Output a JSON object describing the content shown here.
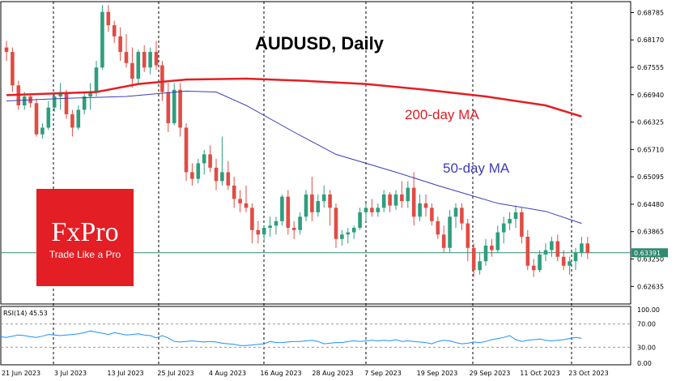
{
  "chart_data": {
    "type": "candlestick",
    "title": "AUDUSD, Daily",
    "symbol": "AUDUSD",
    "timeframe": "Daily",
    "x_tick_labels": [
      "21 Jun 2023",
      "3 Jul 2023",
      "13 Jul 2023",
      "25 Jul 2023",
      "4 Aug 2023",
      "16 Aug 2023",
      "28 Aug 2023",
      "7 Sep 2023",
      "19 Sep 2023",
      "29 Sep 2023",
      "11 Oct 2023",
      "23 Oct 2023"
    ],
    "y_tick_labels": [
      "0.68785",
      "0.68170",
      "0.67555",
      "0.66940",
      "0.66325",
      "0.65710",
      "0.65095",
      "0.64480",
      "0.63865",
      "0.63250",
      "0.62635"
    ],
    "ylim": [
      0.6224,
      0.6903
    ],
    "current_price": 0.63391,
    "current_price_label": "0.63391",
    "candles": [
      {
        "o": 0.68,
        "h": 0.6815,
        "l": 0.677,
        "c": 0.679
      },
      {
        "o": 0.679,
        "h": 0.68,
        "l": 0.67,
        "c": 0.6715
      },
      {
        "o": 0.6715,
        "h": 0.6725,
        "l": 0.666,
        "c": 0.667
      },
      {
        "o": 0.667,
        "h": 0.67,
        "l": 0.666,
        "c": 0.669
      },
      {
        "o": 0.669,
        "h": 0.6695,
        "l": 0.6665,
        "c": 0.6675
      },
      {
        "o": 0.6675,
        "h": 0.6685,
        "l": 0.66,
        "c": 0.6605
      },
      {
        "o": 0.6605,
        "h": 0.663,
        "l": 0.6595,
        "c": 0.662
      },
      {
        "o": 0.662,
        "h": 0.668,
        "l": 0.6615,
        "c": 0.6665
      },
      {
        "o": 0.6665,
        "h": 0.67,
        "l": 0.6655,
        "c": 0.669
      },
      {
        "o": 0.669,
        "h": 0.672,
        "l": 0.666,
        "c": 0.67
      },
      {
        "o": 0.67,
        "h": 0.6705,
        "l": 0.664,
        "c": 0.665
      },
      {
        "o": 0.665,
        "h": 0.666,
        "l": 0.66,
        "c": 0.662
      },
      {
        "o": 0.662,
        "h": 0.667,
        "l": 0.6615,
        "c": 0.666
      },
      {
        "o": 0.666,
        "h": 0.67,
        "l": 0.665,
        "c": 0.669
      },
      {
        "o": 0.669,
        "h": 0.672,
        "l": 0.666,
        "c": 0.67
      },
      {
        "o": 0.67,
        "h": 0.677,
        "l": 0.669,
        "c": 0.6755
      },
      {
        "o": 0.6755,
        "h": 0.6895,
        "l": 0.675,
        "c": 0.688
      },
      {
        "o": 0.688,
        "h": 0.6895,
        "l": 0.6835,
        "c": 0.685
      },
      {
        "o": 0.685,
        "h": 0.686,
        "l": 0.681,
        "c": 0.6825
      },
      {
        "o": 0.6825,
        "h": 0.6845,
        "l": 0.677,
        "c": 0.679
      },
      {
        "o": 0.679,
        "h": 0.683,
        "l": 0.6755,
        "c": 0.6765
      },
      {
        "o": 0.6765,
        "h": 0.68,
        "l": 0.671,
        "c": 0.673
      },
      {
        "o": 0.673,
        "h": 0.6795,
        "l": 0.672,
        "c": 0.679
      },
      {
        "o": 0.679,
        "h": 0.6805,
        "l": 0.6745,
        "c": 0.6755
      },
      {
        "o": 0.6755,
        "h": 0.68,
        "l": 0.674,
        "c": 0.679
      },
      {
        "o": 0.679,
        "h": 0.6815,
        "l": 0.675,
        "c": 0.676
      },
      {
        "o": 0.676,
        "h": 0.677,
        "l": 0.668,
        "c": 0.67
      },
      {
        "o": 0.67,
        "h": 0.672,
        "l": 0.661,
        "c": 0.663
      },
      {
        "o": 0.663,
        "h": 0.672,
        "l": 0.6625,
        "c": 0.6705
      },
      {
        "o": 0.6705,
        "h": 0.672,
        "l": 0.66,
        "c": 0.662
      },
      {
        "o": 0.662,
        "h": 0.663,
        "l": 0.65,
        "c": 0.652
      },
      {
        "o": 0.652,
        "h": 0.654,
        "l": 0.649,
        "c": 0.6505
      },
      {
        "o": 0.6505,
        "h": 0.655,
        "l": 0.6495,
        "c": 0.654
      },
      {
        "o": 0.654,
        "h": 0.657,
        "l": 0.6515,
        "c": 0.656
      },
      {
        "o": 0.656,
        "h": 0.658,
        "l": 0.652,
        "c": 0.653
      },
      {
        "o": 0.653,
        "h": 0.655,
        "l": 0.648,
        "c": 0.65
      },
      {
        "o": 0.65,
        "h": 0.66,
        "l": 0.649,
        "c": 0.652
      },
      {
        "o": 0.652,
        "h": 0.6545,
        "l": 0.648,
        "c": 0.649
      },
      {
        "o": 0.649,
        "h": 0.651,
        "l": 0.644,
        "c": 0.646
      },
      {
        "o": 0.646,
        "h": 0.648,
        "l": 0.643,
        "c": 0.645
      },
      {
        "o": 0.645,
        "h": 0.649,
        "l": 0.643,
        "c": 0.644
      },
      {
        "o": 0.644,
        "h": 0.645,
        "l": 0.636,
        "c": 0.639
      },
      {
        "o": 0.639,
        "h": 0.641,
        "l": 0.636,
        "c": 0.638
      },
      {
        "o": 0.638,
        "h": 0.64,
        "l": 0.6365,
        "c": 0.6395
      },
      {
        "o": 0.6395,
        "h": 0.642,
        "l": 0.6375,
        "c": 0.64
      },
      {
        "o": 0.64,
        "h": 0.642,
        "l": 0.638,
        "c": 0.641
      },
      {
        "o": 0.641,
        "h": 0.647,
        "l": 0.64,
        "c": 0.6465
      },
      {
        "o": 0.6465,
        "h": 0.648,
        "l": 0.638,
        "c": 0.6395
      },
      {
        "o": 0.6395,
        "h": 0.641,
        "l": 0.637,
        "c": 0.639
      },
      {
        "o": 0.639,
        "h": 0.643,
        "l": 0.638,
        "c": 0.642
      },
      {
        "o": 0.642,
        "h": 0.648,
        "l": 0.641,
        "c": 0.647
      },
      {
        "o": 0.647,
        "h": 0.651,
        "l": 0.641,
        "c": 0.643
      },
      {
        "o": 0.643,
        "h": 0.647,
        "l": 0.642,
        "c": 0.6455
      },
      {
        "o": 0.6455,
        "h": 0.649,
        "l": 0.644,
        "c": 0.647
      },
      {
        "o": 0.647,
        "h": 0.648,
        "l": 0.64,
        "c": 0.644
      },
      {
        "o": 0.644,
        "h": 0.645,
        "l": 0.635,
        "c": 0.637
      },
      {
        "o": 0.637,
        "h": 0.639,
        "l": 0.6355,
        "c": 0.638
      },
      {
        "o": 0.638,
        "h": 0.6395,
        "l": 0.636,
        "c": 0.6385
      },
      {
        "o": 0.6385,
        "h": 0.64,
        "l": 0.637,
        "c": 0.6395
      },
      {
        "o": 0.6395,
        "h": 0.644,
        "l": 0.639,
        "c": 0.643
      },
      {
        "o": 0.643,
        "h": 0.645,
        "l": 0.641,
        "c": 0.644
      },
      {
        "o": 0.644,
        "h": 0.646,
        "l": 0.642,
        "c": 0.643
      },
      {
        "o": 0.643,
        "h": 0.645,
        "l": 0.642,
        "c": 0.644
      },
      {
        "o": 0.644,
        "h": 0.648,
        "l": 0.643,
        "c": 0.647
      },
      {
        "o": 0.647,
        "h": 0.6475,
        "l": 0.643,
        "c": 0.6445
      },
      {
        "o": 0.6445,
        "h": 0.648,
        "l": 0.6435,
        "c": 0.647
      },
      {
        "o": 0.647,
        "h": 0.65,
        "l": 0.644,
        "c": 0.6455
      },
      {
        "o": 0.6455,
        "h": 0.65,
        "l": 0.644,
        "c": 0.6485
      },
      {
        "o": 0.6485,
        "h": 0.652,
        "l": 0.64,
        "c": 0.642
      },
      {
        "o": 0.642,
        "h": 0.647,
        "l": 0.641,
        "c": 0.645
      },
      {
        "o": 0.645,
        "h": 0.647,
        "l": 0.642,
        "c": 0.644
      },
      {
        "o": 0.644,
        "h": 0.645,
        "l": 0.64,
        "c": 0.641
      },
      {
        "o": 0.641,
        "h": 0.642,
        "l": 0.637,
        "c": 0.638
      },
      {
        "o": 0.638,
        "h": 0.64,
        "l": 0.634,
        "c": 0.635
      },
      {
        "o": 0.635,
        "h": 0.6435,
        "l": 0.634,
        "c": 0.642
      },
      {
        "o": 0.642,
        "h": 0.645,
        "l": 0.6395,
        "c": 0.644
      },
      {
        "o": 0.644,
        "h": 0.645,
        "l": 0.639,
        "c": 0.6405
      },
      {
        "o": 0.6405,
        "h": 0.6415,
        "l": 0.632,
        "c": 0.635
      },
      {
        "o": 0.635,
        "h": 0.636,
        "l": 0.6285,
        "c": 0.63
      },
      {
        "o": 0.63,
        "h": 0.634,
        "l": 0.629,
        "c": 0.632
      },
      {
        "o": 0.632,
        "h": 0.637,
        "l": 0.631,
        "c": 0.6355
      },
      {
        "o": 0.6355,
        "h": 0.637,
        "l": 0.633,
        "c": 0.6345
      },
      {
        "o": 0.6345,
        "h": 0.64,
        "l": 0.634,
        "c": 0.6385
      },
      {
        "o": 0.6385,
        "h": 0.642,
        "l": 0.636,
        "c": 0.6405
      },
      {
        "o": 0.6405,
        "h": 0.643,
        "l": 0.639,
        "c": 0.6415
      },
      {
        "o": 0.6415,
        "h": 0.6445,
        "l": 0.6395,
        "c": 0.643
      },
      {
        "o": 0.643,
        "h": 0.644,
        "l": 0.636,
        "c": 0.6375
      },
      {
        "o": 0.6375,
        "h": 0.639,
        "l": 0.63,
        "c": 0.631
      },
      {
        "o": 0.631,
        "h": 0.6325,
        "l": 0.6285,
        "c": 0.63
      },
      {
        "o": 0.63,
        "h": 0.6345,
        "l": 0.6295,
        "c": 0.6335
      },
      {
        "o": 0.6335,
        "h": 0.636,
        "l": 0.632,
        "c": 0.6345
      },
      {
        "o": 0.6345,
        "h": 0.6375,
        "l": 0.633,
        "c": 0.6365
      },
      {
        "o": 0.6365,
        "h": 0.638,
        "l": 0.632,
        "c": 0.633
      },
      {
        "o": 0.633,
        "h": 0.6345,
        "l": 0.63,
        "c": 0.631
      },
      {
        "o": 0.631,
        "h": 0.633,
        "l": 0.629,
        "c": 0.632
      },
      {
        "o": 0.632,
        "h": 0.635,
        "l": 0.63,
        "c": 0.634
      },
      {
        "o": 0.634,
        "h": 0.6375,
        "l": 0.633,
        "c": 0.636
      },
      {
        "o": 0.636,
        "h": 0.6375,
        "l": 0.6325,
        "c": 0.6339
      }
    ],
    "ma_series": [
      {
        "name": "200-day MA",
        "color": "#e31e24",
        "points": [
          [
            0,
            0.6693
          ],
          [
            15,
            0.67
          ],
          [
            22,
            0.6718
          ],
          [
            30,
            0.6728
          ],
          [
            40,
            0.673
          ],
          [
            50,
            0.6725
          ],
          [
            60,
            0.6718
          ],
          [
            70,
            0.6705
          ],
          [
            80,
            0.669
          ],
          [
            90,
            0.667
          ],
          [
            96,
            0.6645
          ]
        ]
      },
      {
        "name": "50-day MA",
        "color": "#3b3bbd",
        "points": [
          [
            0,
            0.668
          ],
          [
            10,
            0.6686
          ],
          [
            20,
            0.669
          ],
          [
            30,
            0.6702
          ],
          [
            35,
            0.67
          ],
          [
            40,
            0.667
          ],
          [
            48,
            0.661
          ],
          [
            55,
            0.656
          ],
          [
            65,
            0.652
          ],
          [
            72,
            0.649
          ],
          [
            77,
            0.647
          ],
          [
            82,
            0.645
          ],
          [
            90,
            0.6432
          ],
          [
            96,
            0.6405
          ]
        ]
      }
    ],
    "rsi": {
      "label": "RSI(14) 45.53",
      "period": 14,
      "value": 45.53,
      "color": "#1e90ff",
      "ylim": [
        0,
        100
      ],
      "levels": [
        70,
        30
      ],
      "tick_labels": [
        "100.00",
        "70.00",
        "30.00",
        "0.00"
      ],
      "values": [
        50,
        48,
        47,
        49,
        51,
        50,
        48,
        47,
        49,
        52,
        51,
        50,
        51,
        52,
        53,
        55,
        58,
        56,
        54,
        52,
        55,
        53,
        51,
        52,
        53,
        51,
        50,
        46,
        50,
        46,
        40,
        39,
        40,
        41,
        40,
        39,
        40,
        39,
        37,
        36,
        35,
        33,
        33,
        34,
        35,
        36,
        40,
        38,
        38,
        39,
        40,
        40,
        41,
        42,
        40,
        36,
        37,
        38,
        38,
        40,
        41,
        40,
        41,
        42,
        41,
        42,
        41,
        43,
        40,
        41,
        40,
        39,
        38,
        36,
        40,
        42,
        41,
        38,
        36,
        37,
        39,
        38,
        40,
        43,
        45,
        47,
        50,
        43,
        40,
        42,
        43,
        44,
        42,
        41,
        42,
        43,
        45,
        47,
        45.53
      ]
    }
  },
  "title": "AUDUSD, Daily",
  "ma_labels": {
    "ma200": "200-day MA",
    "ma50": "50-day MA"
  },
  "logo": {
    "name": "FxPro",
    "tagline": "Trade Like a Pro"
  },
  "colors": {
    "bull": "#2e9e7e",
    "bear": "#e04c44",
    "accent": "#e31e24",
    "price_line": "#2e8b70",
    "grid": "#000000"
  }
}
